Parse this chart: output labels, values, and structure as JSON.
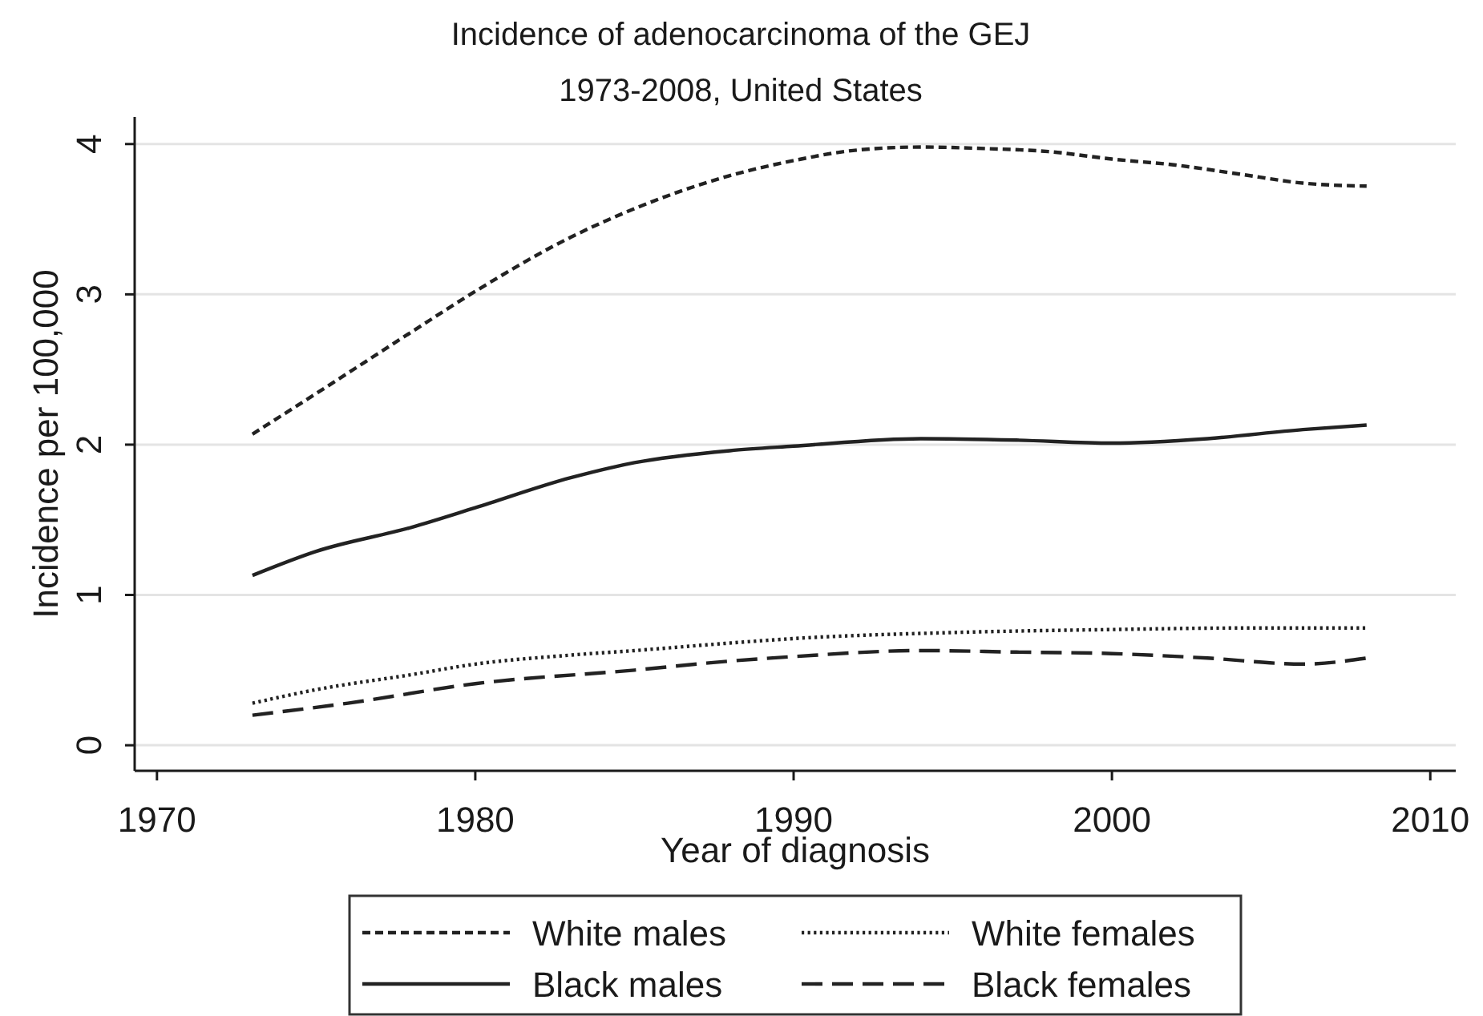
{
  "chart_data": {
    "type": "line",
    "title": "Incidence of adenocarcinoma of the GEJ",
    "subtitle": "1973-2008, United States",
    "xlabel": "Year of diagnosis",
    "ylabel": "Incidence per 100,000",
    "xlim": [
      1969.3,
      2010.8
    ],
    "xticks": [
      1970,
      1980,
      1990,
      2000,
      2010
    ],
    "ylim": [
      -0.17,
      4.18
    ],
    "yticks": [
      0,
      1,
      2,
      3,
      4
    ],
    "grid": "y",
    "legend": "bottom",
    "series": [
      {
        "name": "White males",
        "color": "#222222",
        "line_style": "dashed",
        "x": [
          1973,
          1975,
          1978,
          1980,
          1983,
          1985,
          1988,
          1990,
          1992,
          1994,
          1996,
          1998,
          2000,
          2002,
          2004,
          2006,
          2008
        ],
        "values": [
          2.07,
          2.34,
          2.75,
          3.02,
          3.38,
          3.57,
          3.79,
          3.89,
          3.96,
          3.98,
          3.97,
          3.95,
          3.9,
          3.86,
          3.8,
          3.74,
          3.72
        ]
      },
      {
        "name": "White females",
        "color": "#222222",
        "line_style": "dotted",
        "x": [
          1973,
          1975,
          1978,
          1980,
          1983,
          1985,
          1988,
          1990,
          1995,
          2000,
          2004,
          2008
        ],
        "values": [
          0.28,
          0.37,
          0.47,
          0.54,
          0.6,
          0.63,
          0.68,
          0.71,
          0.75,
          0.77,
          0.78,
          0.78
        ]
      },
      {
        "name": "Black males",
        "color": "#222222",
        "line_style": "solid",
        "x": [
          1973,
          1975,
          1978,
          1980,
          1983,
          1985,
          1988,
          1990,
          1994,
          1997,
          2000,
          2003,
          2006,
          2008
        ],
        "values": [
          1.13,
          1.29,
          1.45,
          1.58,
          1.78,
          1.88,
          1.96,
          1.99,
          2.04,
          2.03,
          2.01,
          2.04,
          2.1,
          2.13
        ]
      },
      {
        "name": "Black females",
        "color": "#222222",
        "line_style": "dashed",
        "x": [
          1973,
          1976,
          1980,
          1985,
          1988,
          1990,
          1994,
          1997,
          2000,
          2003,
          2006,
          2008
        ],
        "values": [
          0.2,
          0.28,
          0.41,
          0.5,
          0.56,
          0.59,
          0.63,
          0.62,
          0.61,
          0.58,
          0.54,
          0.58
        ]
      }
    ]
  }
}
